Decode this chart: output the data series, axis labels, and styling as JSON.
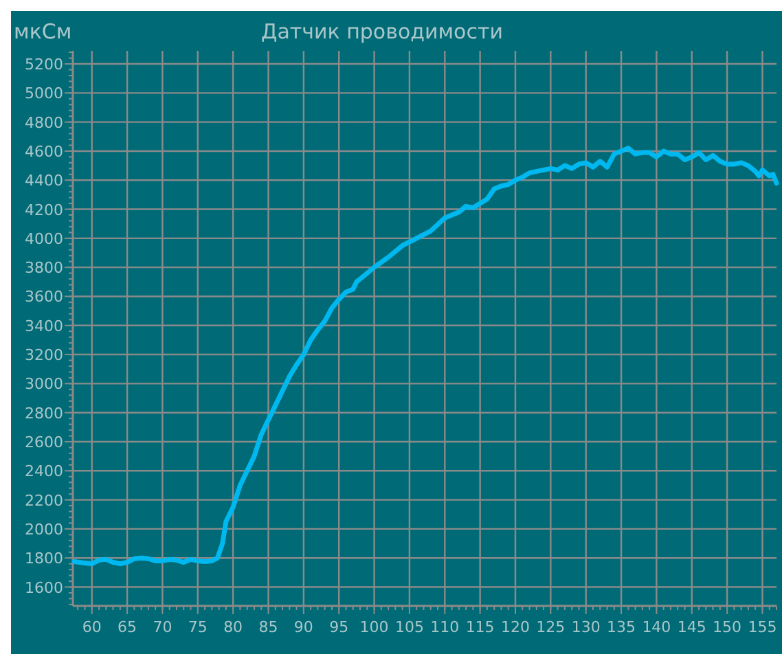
{
  "chart_data": {
    "type": "line",
    "title": "Датчик проводимости",
    "ylabel": "мкСм",
    "x": [
      57.5,
      59,
      60,
      61,
      62,
      63,
      64,
      65,
      66,
      67,
      68,
      69,
      70,
      71,
      72,
      73,
      74,
      75,
      76,
      77,
      77.8,
      78.5,
      79,
      80,
      81,
      82,
      83,
      84,
      85,
      86,
      87,
      88,
      89,
      90,
      91,
      92,
      93,
      94,
      95,
      96,
      97,
      97.5,
      98,
      100,
      102,
      104,
      106,
      108,
      110,
      112,
      113,
      114,
      116,
      117,
      118,
      119,
      120,
      121,
      122,
      124,
      125,
      126,
      127,
      128,
      129,
      130,
      131,
      132,
      133,
      134,
      135,
      136,
      137,
      138,
      139,
      140,
      141,
      142,
      143,
      144,
      145,
      146,
      147,
      148,
      149,
      150,
      151,
      152,
      153,
      154,
      154.5,
      155,
      156,
      156.5,
      157
    ],
    "series": [
      {
        "color": "#00b8f0",
        "values": [
          1775,
          1765,
          1760,
          1785,
          1790,
          1770,
          1760,
          1770,
          1795,
          1800,
          1795,
          1780,
          1780,
          1790,
          1785,
          1770,
          1790,
          1780,
          1775,
          1780,
          1800,
          1900,
          2050,
          2150,
          2300,
          2400,
          2500,
          2650,
          2750,
          2850,
          2950,
          3050,
          3130,
          3200,
          3300,
          3370,
          3430,
          3520,
          3580,
          3630,
          3650,
          3700,
          3720,
          3800,
          3870,
          3950,
          4000,
          4050,
          4140,
          4180,
          4220,
          4210,
          4270,
          4340,
          4360,
          4370,
          4400,
          4420,
          4450,
          4470,
          4480,
          4470,
          4500,
          4480,
          4510,
          4520,
          4490,
          4530,
          4490,
          4580,
          4600,
          4620,
          4580,
          4590,
          4590,
          4560,
          4600,
          4580,
          4580,
          4540,
          4560,
          4590,
          4540,
          4570,
          4530,
          4510,
          4510,
          4520,
          4500,
          4460,
          4430,
          4470,
          4430,
          4440,
          4380
        ]
      }
    ],
    "xlim": [
      57.3,
      157
    ],
    "ylim": [
      1470,
      5290
    ],
    "xticks": [
      60,
      65,
      70,
      75,
      80,
      85,
      90,
      95,
      100,
      105,
      110,
      115,
      120,
      125,
      130,
      135,
      140,
      145,
      150,
      155
    ],
    "yticks": [
      1600,
      1800,
      2000,
      2200,
      2400,
      2600,
      2800,
      3000,
      3200,
      3400,
      3600,
      3800,
      4000,
      4200,
      4400,
      4600,
      4800,
      5000,
      5200
    ],
    "grid": true,
    "marker": "none",
    "line_style": "solid"
  }
}
